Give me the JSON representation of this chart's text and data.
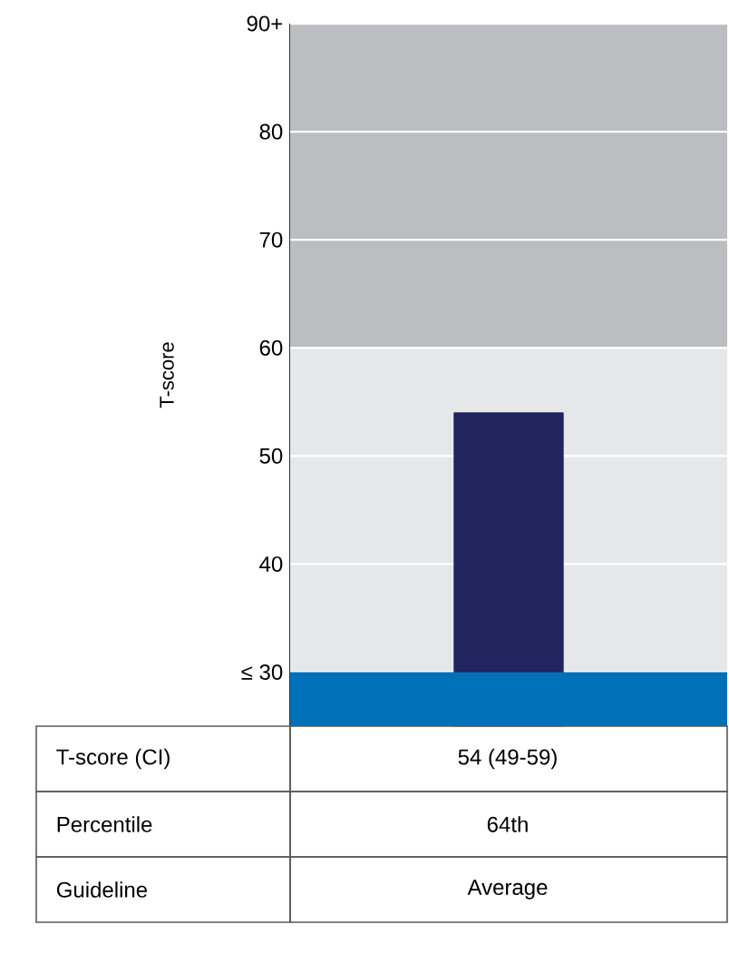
{
  "chart_data": {
    "type": "bar",
    "ylabel": "T-score",
    "categories": [
      null
    ],
    "values": [
      54
    ],
    "color": "#21245f",
    "value_labels": [
      "54 (49-59)"
    ],
    "ylim": [
      25,
      90
    ],
    "yticks": [
      {
        "value": 30,
        "label": "≤ 30"
      },
      40,
      50,
      60,
      70,
      80,
      {
        "value": 90,
        "label": "90+"
      }
    ],
    "grid": "y",
    "bands": [
      {
        "axis": "y",
        "from": 25,
        "to": 30,
        "color": "#0070b8"
      },
      {
        "axis": "y",
        "from": 30,
        "to": 60,
        "color": "#e6e7e9"
      },
      {
        "axis": "y",
        "from": 60,
        "to": 90,
        "color": "#bcbdc0"
      }
    ],
    "annotations": [
      "T-score (CI)",
      "Percentile",
      "64th",
      "Guideline",
      "Average"
    ]
  }
}
